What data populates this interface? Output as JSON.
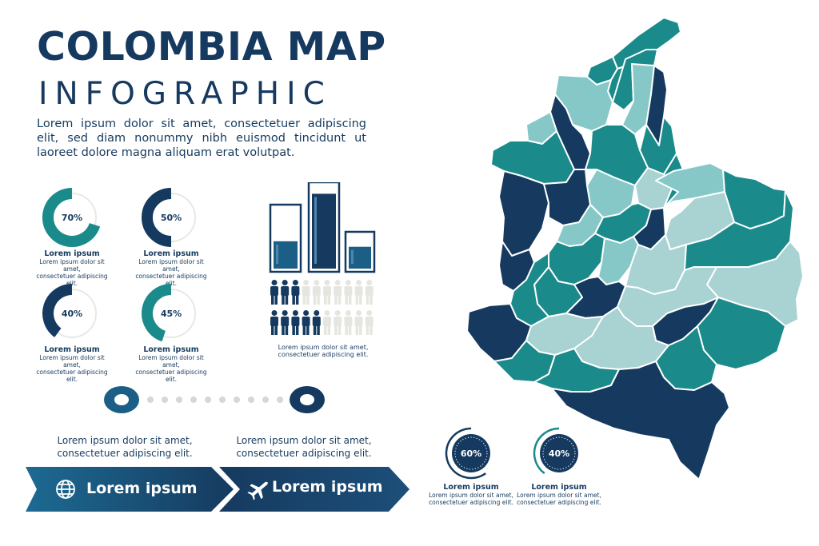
{
  "header": {
    "title": "COLOMBIA MAP",
    "subtitle": "INFOGRAPHIC",
    "intro": "Lorem ipsum dolor sit amet, consectetuer adipiscing elit, sed diam nonummy nibh euismod tincidunt ut laoreet dolore magna aliquam erat volutpat."
  },
  "colors": {
    "navy": "#163a5f",
    "teal": "#1b8a8a",
    "light_teal": "#86c8c8",
    "pale": "#a9d2d3",
    "gray": "#e6e6e1"
  },
  "donuts": [
    {
      "percent": 70,
      "label": "70%",
      "title": "Lorem ipsum",
      "text": "Lorem ipsum dolor sit amet,\nconsectetuer adipiscing elit.",
      "color": "#1b8a8a"
    },
    {
      "percent": 50,
      "label": "50%",
      "title": "Lorem ipsum",
      "text": "Lorem ipsum dolor sit amet,\nconsectetuer adipiscing elit.",
      "color": "#163a5f"
    },
    {
      "percent": 40,
      "label": "40%",
      "title": "Lorem ipsum",
      "text": "Lorem ipsum dolor sit amet,\nconsectetuer adipiscing elit.",
      "color": "#163a5f"
    },
    {
      "percent": 45,
      "label": "45%",
      "title": "Lorem ipsum",
      "text": "Lorem ipsum dolor sit amet,\nconsectetuer adipiscing elit.",
      "color": "#1b8a8a"
    }
  ],
  "glasses": {
    "fill_levels": [
      0.45,
      0.9,
      0.65
    ],
    "people_rows": [
      {
        "filled": 3,
        "total": 10
      },
      {
        "filled": 5,
        "total": 10
      }
    ],
    "caption": "Lorem ipsum dolor sit amet,\nconsectetuer adipiscing elit."
  },
  "timeline": {
    "items": [
      {
        "text": "Lorem ipsum dolor sit amet,\nconsectetuer adipiscing elit."
      },
      {
        "text": "Lorem ipsum dolor sit amet,\nconsectetuer adipiscing elit."
      }
    ],
    "arrows": [
      {
        "label": "Lorem ipsum",
        "icon": "globe-icon"
      },
      {
        "label": "Lorem ipsum",
        "icon": "airplane-icon"
      }
    ]
  },
  "map_stats": [
    {
      "percent": 60,
      "label": "60%",
      "title": "Lorem ipsum",
      "text": "Lorem ipsum dolor sit amet,\nconsectetuer adipiscing elit."
    },
    {
      "percent": 40,
      "label": "40%",
      "title": "Lorem ipsum",
      "text": "Lorem ipsum dolor sit amet,\nconsectetuer adipiscing elit."
    }
  ]
}
